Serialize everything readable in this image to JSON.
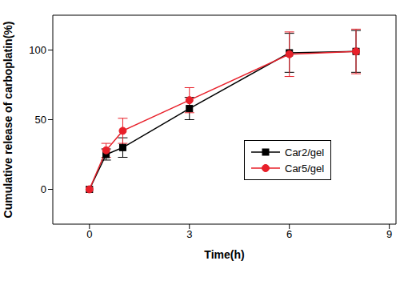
{
  "chart_data": {
    "type": "line",
    "x_label": "Time(h)",
    "y_label": "Cumulative release of carboplatin(%)",
    "xlim": [
      -1.1,
      9.2
    ],
    "xticks": [
      0,
      3,
      6,
      9
    ],
    "ylim": [
      -25,
      125
    ],
    "yticks": [
      0,
      50,
      100
    ],
    "grid": false,
    "legend": "right",
    "series": [
      {
        "name": "Car2/gel",
        "color": "#000000",
        "marker": "square",
        "x": [
          0,
          0.5,
          1,
          3,
          6,
          8
        ],
        "values": [
          0,
          25,
          30,
          58,
          98,
          99
        ],
        "error": [
          0,
          4,
          7,
          8,
          14,
          15
        ]
      },
      {
        "name": "Car5/gel",
        "color": "#e8202a",
        "marker": "circle",
        "x": [
          0,
          0.5,
          1,
          3,
          6,
          8
        ],
        "values": [
          0,
          28,
          42,
          64,
          97,
          99
        ],
        "error": [
          0,
          5,
          9,
          9,
          16,
          16
        ]
      }
    ]
  }
}
